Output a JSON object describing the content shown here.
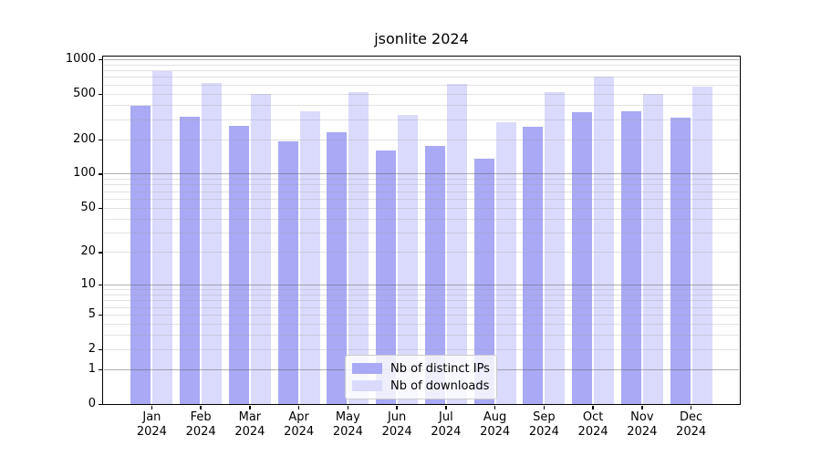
{
  "chart_data": {
    "type": "bar",
    "title": "jsonlite 2024",
    "x_year": "2024",
    "categories": [
      "Jan",
      "Feb",
      "Mar",
      "Apr",
      "May",
      "Jun",
      "Jul",
      "Aug",
      "Sep",
      "Oct",
      "Nov",
      "Dec"
    ],
    "series": [
      {
        "name": "Nb of distinct IPs",
        "color": "#a9a9f5",
        "values": [
          390,
          315,
          262,
          192,
          232,
          160,
          176,
          135,
          257,
          345,
          352,
          308
        ]
      },
      {
        "name": "Nb of downloads",
        "color": "#dadafc",
        "values": [
          790,
          620,
          495,
          350,
          515,
          327,
          610,
          282,
          515,
          705,
          500,
          577
        ]
      }
    ],
    "y_ticks": [
      0,
      1,
      2,
      5,
      10,
      20,
      50,
      100,
      200,
      500,
      1000
    ],
    "y_scale": "log1p",
    "ylim": [
      0,
      1060
    ],
    "grid": true,
    "grid_major_at": [
      1,
      10,
      100,
      1000
    ],
    "grid_major_color": "#b0b0b0",
    "grid_minor_color": "#e5e5e5",
    "legend_position": "lower-center-inside"
  }
}
